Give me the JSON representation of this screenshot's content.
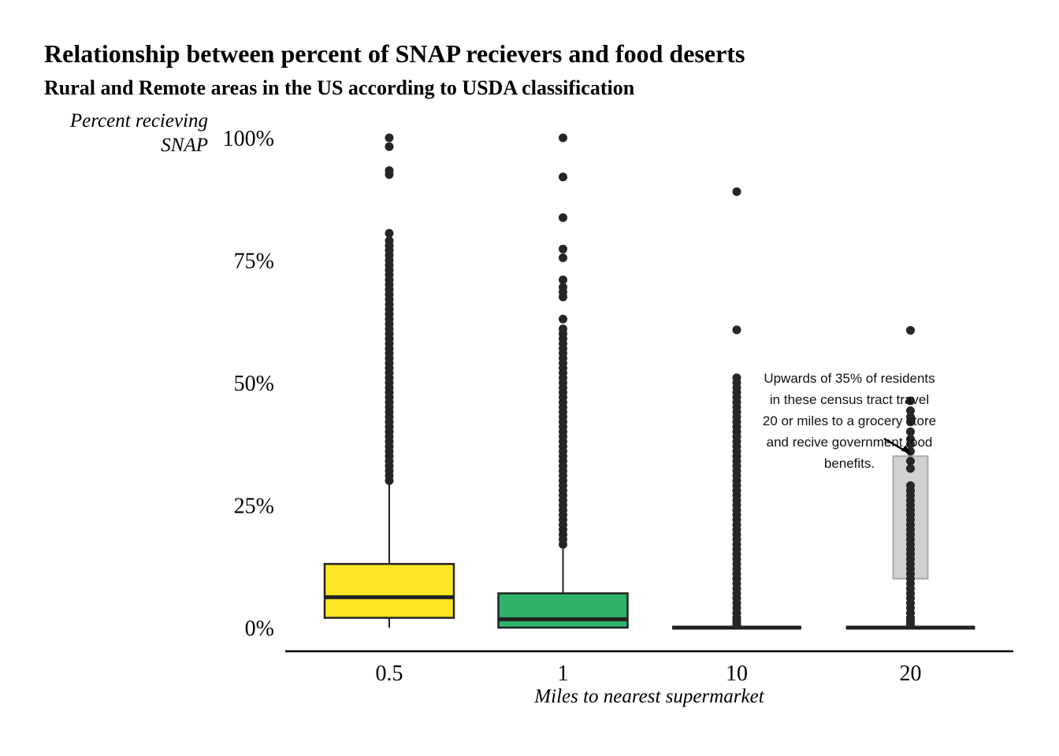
{
  "chart_data": {
    "type": "box",
    "title": "Relationship between percent of SNAP recievers and food deserts",
    "subtitle": "Rural and Remote areas in the US according to USDA classification",
    "xlabel": "Miles to nearest supermarket",
    "ylabel_lines": [
      "Percent recieving",
      "SNAP"
    ],
    "ylim": [
      0,
      100
    ],
    "y_ticks": [
      0,
      25,
      50,
      75,
      100
    ],
    "y_tick_labels": [
      "0%",
      "25%",
      "50%",
      "75%",
      "100%"
    ],
    "categories": [
      "0.5",
      "1",
      "10",
      "20"
    ],
    "boxes": [
      {
        "category": "0.5",
        "min": 0,
        "q1": 2,
        "median": 6.2,
        "q3": 13,
        "max": 29.5,
        "fill": "#fde725",
        "stroke": "#222222",
        "outliers": [
          30,
          31,
          32,
          33,
          34,
          35,
          36,
          37,
          38,
          39,
          40,
          41,
          42,
          43,
          44,
          45,
          46,
          47,
          48,
          49,
          50,
          51,
          52,
          53,
          54,
          55,
          56,
          57,
          58,
          59,
          60,
          61,
          62,
          63,
          64,
          65,
          66,
          67,
          68,
          69,
          70,
          71,
          72,
          73,
          74,
          75,
          76,
          77,
          78,
          79,
          80.5,
          92.5,
          93.3,
          98.2,
          100
        ]
      },
      {
        "category": "1",
        "min": 0,
        "q1": 0,
        "median": 1.7,
        "q3": 7,
        "max": 16.5,
        "fill": "#2db36a",
        "stroke": "#222222",
        "outliers": [
          17,
          18,
          19,
          20,
          21,
          22,
          23,
          24,
          25,
          26,
          27,
          28,
          29,
          30,
          31,
          32,
          33,
          34,
          35,
          36,
          37,
          38,
          39,
          40,
          41,
          42,
          43,
          44,
          45,
          46,
          47,
          48,
          49,
          50,
          51,
          52,
          53,
          54,
          55,
          56,
          57,
          58,
          59,
          60,
          61,
          63,
          67.5,
          68.5,
          69.5,
          71,
          75.5,
          77.3,
          83.7,
          92,
          100
        ]
      },
      {
        "category": "10",
        "min": 0,
        "q1": 0,
        "median": 0,
        "q3": 0,
        "max": 0,
        "fill": "#2a2a2a",
        "stroke": "#222222",
        "outliers": [
          0.5,
          1,
          1.5,
          2,
          3,
          4,
          5,
          6,
          7,
          8,
          9,
          10,
          11,
          12,
          13,
          14,
          15,
          16,
          17,
          18,
          19,
          20,
          21,
          22,
          23,
          24,
          25,
          26,
          27,
          28,
          29,
          30,
          31,
          32,
          33,
          34,
          35,
          36,
          37,
          38,
          39,
          40,
          41,
          42,
          43,
          44,
          45,
          46,
          47,
          48,
          49,
          50,
          51,
          60.8,
          89
        ]
      },
      {
        "category": "20",
        "min": 0,
        "q1": 0,
        "median": 0,
        "q3": 0,
        "max": 0,
        "fill": "#2a2a2a",
        "stroke": "#222222",
        "outliers": [
          0.5,
          1,
          1.5,
          2,
          3,
          4,
          5,
          6,
          7,
          8,
          9,
          10,
          11,
          12,
          13,
          14,
          15,
          16,
          17,
          18,
          19,
          20,
          21,
          22,
          23,
          24,
          25,
          26,
          27,
          28,
          29,
          32.5,
          34,
          36,
          37.5,
          38.5,
          40,
          42,
          43,
          44.3,
          46.3,
          60.7
        ]
      }
    ],
    "highlight_rect": {
      "category": "20",
      "y_low": 10,
      "y_high": 35,
      "fill": "#bdbdbd",
      "opacity": 0.7
    },
    "annotation": {
      "lines": [
        "Upwards of 35% of residents",
        "in these census tract travel",
        "20 or miles to a grocery store",
        "and recive government food",
        "benefits."
      ],
      "arrow_to": {
        "category": "20",
        "y": 35
      }
    }
  }
}
